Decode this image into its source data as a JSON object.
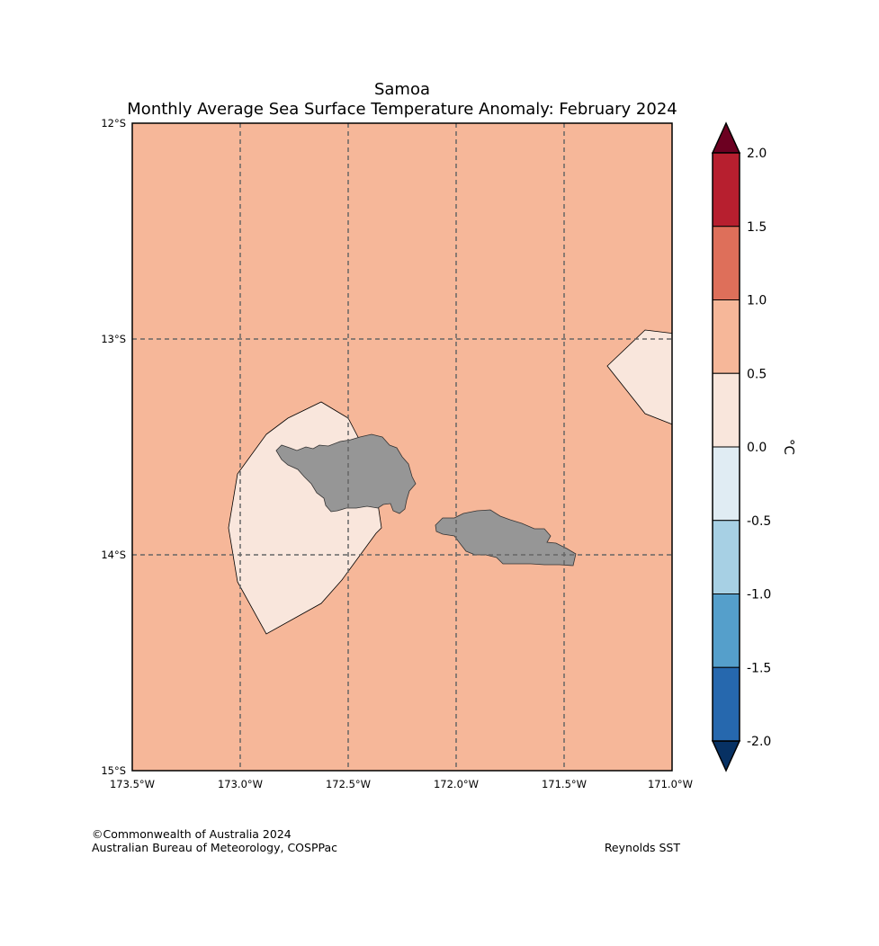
{
  "title": {
    "line1": "Samoa",
    "line2": "Monthly Average Sea Surface Temperature Anomaly: February 2024"
  },
  "map": {
    "lon_range": [
      -173.5,
      -171.0
    ],
    "lat_range": [
      -15,
      -12
    ],
    "ocean_color": "#f6b799",
    "light_anomaly_color": "#f9e6dc",
    "land_color": "#969696",
    "lat_labels": [
      "12°S",
      "13°S",
      "14°S",
      "15°S"
    ],
    "lon_labels": [
      "173.5°W",
      "173.0°W",
      "172.5°W",
      "172.0°W",
      "171.5°W",
      "171.0°W"
    ]
  },
  "colorbar": {
    "unit": "°C",
    "ticks": [
      "2.0",
      "1.5",
      "1.0",
      "0.5",
      "0.0",
      "-0.5",
      "-1.0",
      "-1.5",
      "-2.0"
    ],
    "bins_top_to_bottom": [
      "#b71f2f",
      "#de6f5a",
      "#f6b799",
      "#f9e6dc",
      "#e0ecf3",
      "#a7d0e4",
      "#559fcb",
      "#2668ae"
    ],
    "over_color": "#6c0021",
    "under_color": "#073163"
  },
  "footer": {
    "copyright": "©Commonwealth of Australia 2024",
    "agency": "Australian Bureau of Meteorology, COSPPac",
    "source": "Reynolds SST"
  }
}
